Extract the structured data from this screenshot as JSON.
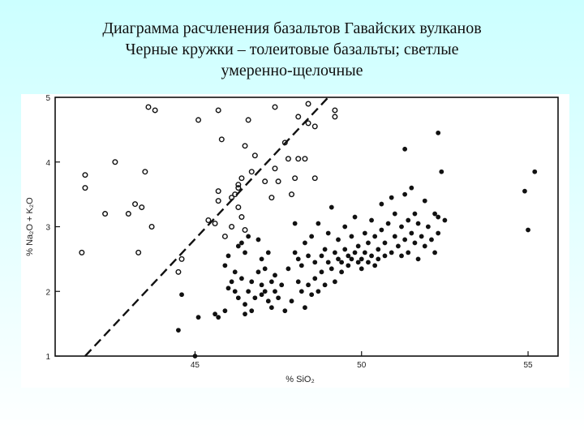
{
  "slide": {
    "title_line1": "Диаграмма расчленения базальтов Гавайских вулканов",
    "title_line2": "Черные кружки – толеитовые базальты; светлые",
    "title_line3": "умеренно-щелочные"
  },
  "chart_data": {
    "type": "scatter",
    "title": "",
    "xlabel": "% SiO₂",
    "ylabel": "% Na₂O + K₂O",
    "xlim": [
      40.8,
      55.9
    ],
    "ylim": [
      1,
      5
    ],
    "xticks": [
      45,
      50,
      55
    ],
    "xtick_labels": [
      "45",
      "50",
      "55"
    ],
    "yticks": [
      1,
      2,
      3,
      4,
      5
    ],
    "ytick_labels": [
      "1",
      "2",
      "3",
      "4",
      "5"
    ],
    "grid": false,
    "legend": "none",
    "colors": {
      "frame": "#111111",
      "points": "#111111",
      "background": "#ffffff"
    },
    "divider_line": {
      "style": "dashed",
      "points": [
        [
          41.7,
          1.0
        ],
        [
          49.0,
          5.0
        ]
      ]
    },
    "series": [
      {
        "marker": "open-circle",
        "points": [
          [
            41.7,
            3.8
          ],
          [
            41.7,
            3.6
          ],
          [
            41.6,
            2.6
          ],
          [
            42.3,
            3.2
          ],
          [
            42.6,
            4.0
          ],
          [
            43.0,
            3.2
          ],
          [
            43.2,
            3.35
          ],
          [
            43.4,
            3.3
          ],
          [
            43.3,
            2.6
          ],
          [
            43.5,
            3.85
          ],
          [
            43.7,
            3.0
          ],
          [
            43.6,
            4.85
          ],
          [
            43.8,
            4.8
          ],
          [
            44.5,
            2.3
          ],
          [
            44.6,
            2.5
          ],
          [
            45.1,
            4.65
          ],
          [
            45.4,
            3.1
          ],
          [
            45.6,
            3.05
          ],
          [
            45.7,
            3.4
          ],
          [
            45.7,
            3.55
          ],
          [
            45.7,
            4.8
          ],
          [
            45.8,
            4.35
          ],
          [
            45.9,
            2.85
          ],
          [
            46.1,
            3.0
          ],
          [
            46.1,
            3.45
          ],
          [
            46.3,
            3.3
          ],
          [
            46.2,
            3.5
          ],
          [
            46.3,
            3.6
          ],
          [
            46.3,
            3.65
          ],
          [
            46.4,
            3.15
          ],
          [
            46.4,
            3.75
          ],
          [
            46.5,
            2.95
          ],
          [
            46.5,
            4.25
          ],
          [
            46.6,
            4.65
          ],
          [
            46.7,
            3.85
          ],
          [
            46.8,
            4.1
          ],
          [
            47.1,
            3.7
          ],
          [
            47.3,
            3.45
          ],
          [
            47.4,
            4.85
          ],
          [
            47.4,
            3.9
          ],
          [
            47.5,
            3.7
          ],
          [
            47.7,
            4.3
          ],
          [
            47.8,
            4.05
          ],
          [
            47.9,
            3.5
          ],
          [
            48.0,
            3.75
          ],
          [
            48.1,
            4.7
          ],
          [
            48.1,
            4.05
          ],
          [
            48.3,
            4.05
          ],
          [
            48.4,
            4.9
          ],
          [
            48.4,
            4.6
          ],
          [
            48.6,
            4.55
          ],
          [
            48.6,
            3.75
          ],
          [
            49.2,
            4.8
          ],
          [
            49.2,
            4.7
          ]
        ]
      },
      {
        "marker": "filled-circle",
        "points": [
          [
            44.5,
            1.4
          ],
          [
            44.6,
            1.95
          ],
          [
            45.0,
            1.0
          ],
          [
            45.1,
            1.6
          ],
          [
            45.6,
            1.65
          ],
          [
            45.7,
            1.6
          ],
          [
            45.9,
            1.7
          ],
          [
            45.9,
            2.4
          ],
          [
            46.0,
            2.05
          ],
          [
            46.0,
            2.55
          ],
          [
            46.1,
            2.15
          ],
          [
            46.2,
            2.3
          ],
          [
            46.2,
            2.0
          ],
          [
            46.3,
            1.9
          ],
          [
            46.3,
            2.7
          ],
          [
            46.4,
            2.2
          ],
          [
            46.4,
            2.75
          ],
          [
            46.5,
            1.8
          ],
          [
            46.5,
            1.65
          ],
          [
            46.5,
            2.6
          ],
          [
            46.6,
            2.85
          ],
          [
            46.6,
            2.0
          ],
          [
            46.7,
            1.7
          ],
          [
            46.7,
            2.15
          ],
          [
            46.8,
            1.9
          ],
          [
            46.9,
            2.3
          ],
          [
            46.9,
            2.8
          ],
          [
            47.0,
            1.95
          ],
          [
            47.0,
            2.5
          ],
          [
            47.0,
            2.1
          ],
          [
            47.1,
            2.0
          ],
          [
            47.1,
            2.35
          ],
          [
            47.2,
            1.85
          ],
          [
            47.2,
            2.6
          ],
          [
            47.3,
            2.15
          ],
          [
            47.3,
            1.75
          ],
          [
            47.4,
            2.25
          ],
          [
            47.4,
            2.0
          ],
          [
            47.5,
            1.9
          ],
          [
            47.6,
            2.1
          ],
          [
            47.7,
            1.7
          ],
          [
            47.8,
            2.35
          ],
          [
            47.9,
            1.85
          ],
          [
            48.0,
            2.6
          ],
          [
            48.0,
            3.05
          ],
          [
            48.1,
            2.15
          ],
          [
            48.1,
            2.5
          ],
          [
            48.2,
            2.0
          ],
          [
            48.2,
            2.4
          ],
          [
            48.3,
            1.75
          ],
          [
            48.3,
            2.75
          ],
          [
            48.4,
            2.1
          ],
          [
            48.4,
            2.55
          ],
          [
            48.5,
            1.95
          ],
          [
            48.5,
            2.85
          ],
          [
            48.6,
            2.2
          ],
          [
            48.6,
            2.45
          ],
          [
            48.7,
            3.05
          ],
          [
            48.7,
            2.0
          ],
          [
            48.8,
            2.55
          ],
          [
            48.8,
            2.3
          ],
          [
            48.9,
            2.65
          ],
          [
            48.9,
            2.1
          ],
          [
            49.0,
            2.45
          ],
          [
            49.0,
            2.9
          ],
          [
            49.1,
            2.35
          ],
          [
            49.1,
            3.3
          ],
          [
            49.2,
            2.6
          ],
          [
            49.2,
            2.15
          ],
          [
            49.3,
            2.5
          ],
          [
            49.3,
            2.8
          ],
          [
            49.4,
            2.3
          ],
          [
            49.4,
            2.45
          ],
          [
            49.5,
            2.65
          ],
          [
            49.5,
            3.0
          ],
          [
            49.6,
            2.4
          ],
          [
            49.6,
            2.55
          ],
          [
            49.7,
            2.85
          ],
          [
            49.7,
            2.5
          ],
          [
            49.8,
            2.6
          ],
          [
            49.8,
            3.15
          ],
          [
            49.9,
            2.45
          ],
          [
            49.9,
            2.7
          ],
          [
            50.0,
            2.5
          ],
          [
            50.0,
            2.35
          ],
          [
            50.1,
            2.9
          ],
          [
            50.1,
            2.6
          ],
          [
            50.2,
            2.45
          ],
          [
            50.2,
            2.75
          ],
          [
            50.3,
            2.55
          ],
          [
            50.3,
            3.1
          ],
          [
            50.4,
            2.4
          ],
          [
            50.4,
            2.85
          ],
          [
            50.5,
            2.65
          ],
          [
            50.5,
            2.5
          ],
          [
            50.6,
            2.95
          ],
          [
            50.6,
            3.35
          ],
          [
            50.7,
            2.55
          ],
          [
            50.7,
            2.75
          ],
          [
            50.8,
            3.05
          ],
          [
            50.9,
            2.6
          ],
          [
            50.9,
            3.45
          ],
          [
            51.0,
            2.85
          ],
          [
            51.0,
            3.2
          ],
          [
            51.1,
            2.7
          ],
          [
            51.2,
            2.55
          ],
          [
            51.2,
            3.0
          ],
          [
            51.3,
            2.8
          ],
          [
            51.3,
            3.5
          ],
          [
            51.4,
            2.6
          ],
          [
            51.4,
            3.1
          ],
          [
            51.5,
            3.6
          ],
          [
            51.5,
            2.9
          ],
          [
            51.6,
            2.75
          ],
          [
            51.6,
            3.2
          ],
          [
            51.7,
            2.5
          ],
          [
            51.7,
            3.05
          ],
          [
            51.8,
            2.85
          ],
          [
            51.9,
            2.7
          ],
          [
            52.0,
            3.0
          ],
          [
            52.1,
            2.8
          ],
          [
            52.2,
            2.6
          ],
          [
            52.2,
            3.2
          ],
          [
            52.3,
            2.9
          ],
          [
            52.3,
            3.15
          ],
          [
            51.3,
            4.2
          ],
          [
            51.9,
            3.4
          ],
          [
            52.3,
            4.45
          ],
          [
            52.4,
            3.85
          ],
          [
            52.5,
            3.1
          ],
          [
            54.9,
            3.55
          ],
          [
            55.0,
            2.95
          ],
          [
            55.2,
            3.85
          ]
        ]
      }
    ]
  }
}
